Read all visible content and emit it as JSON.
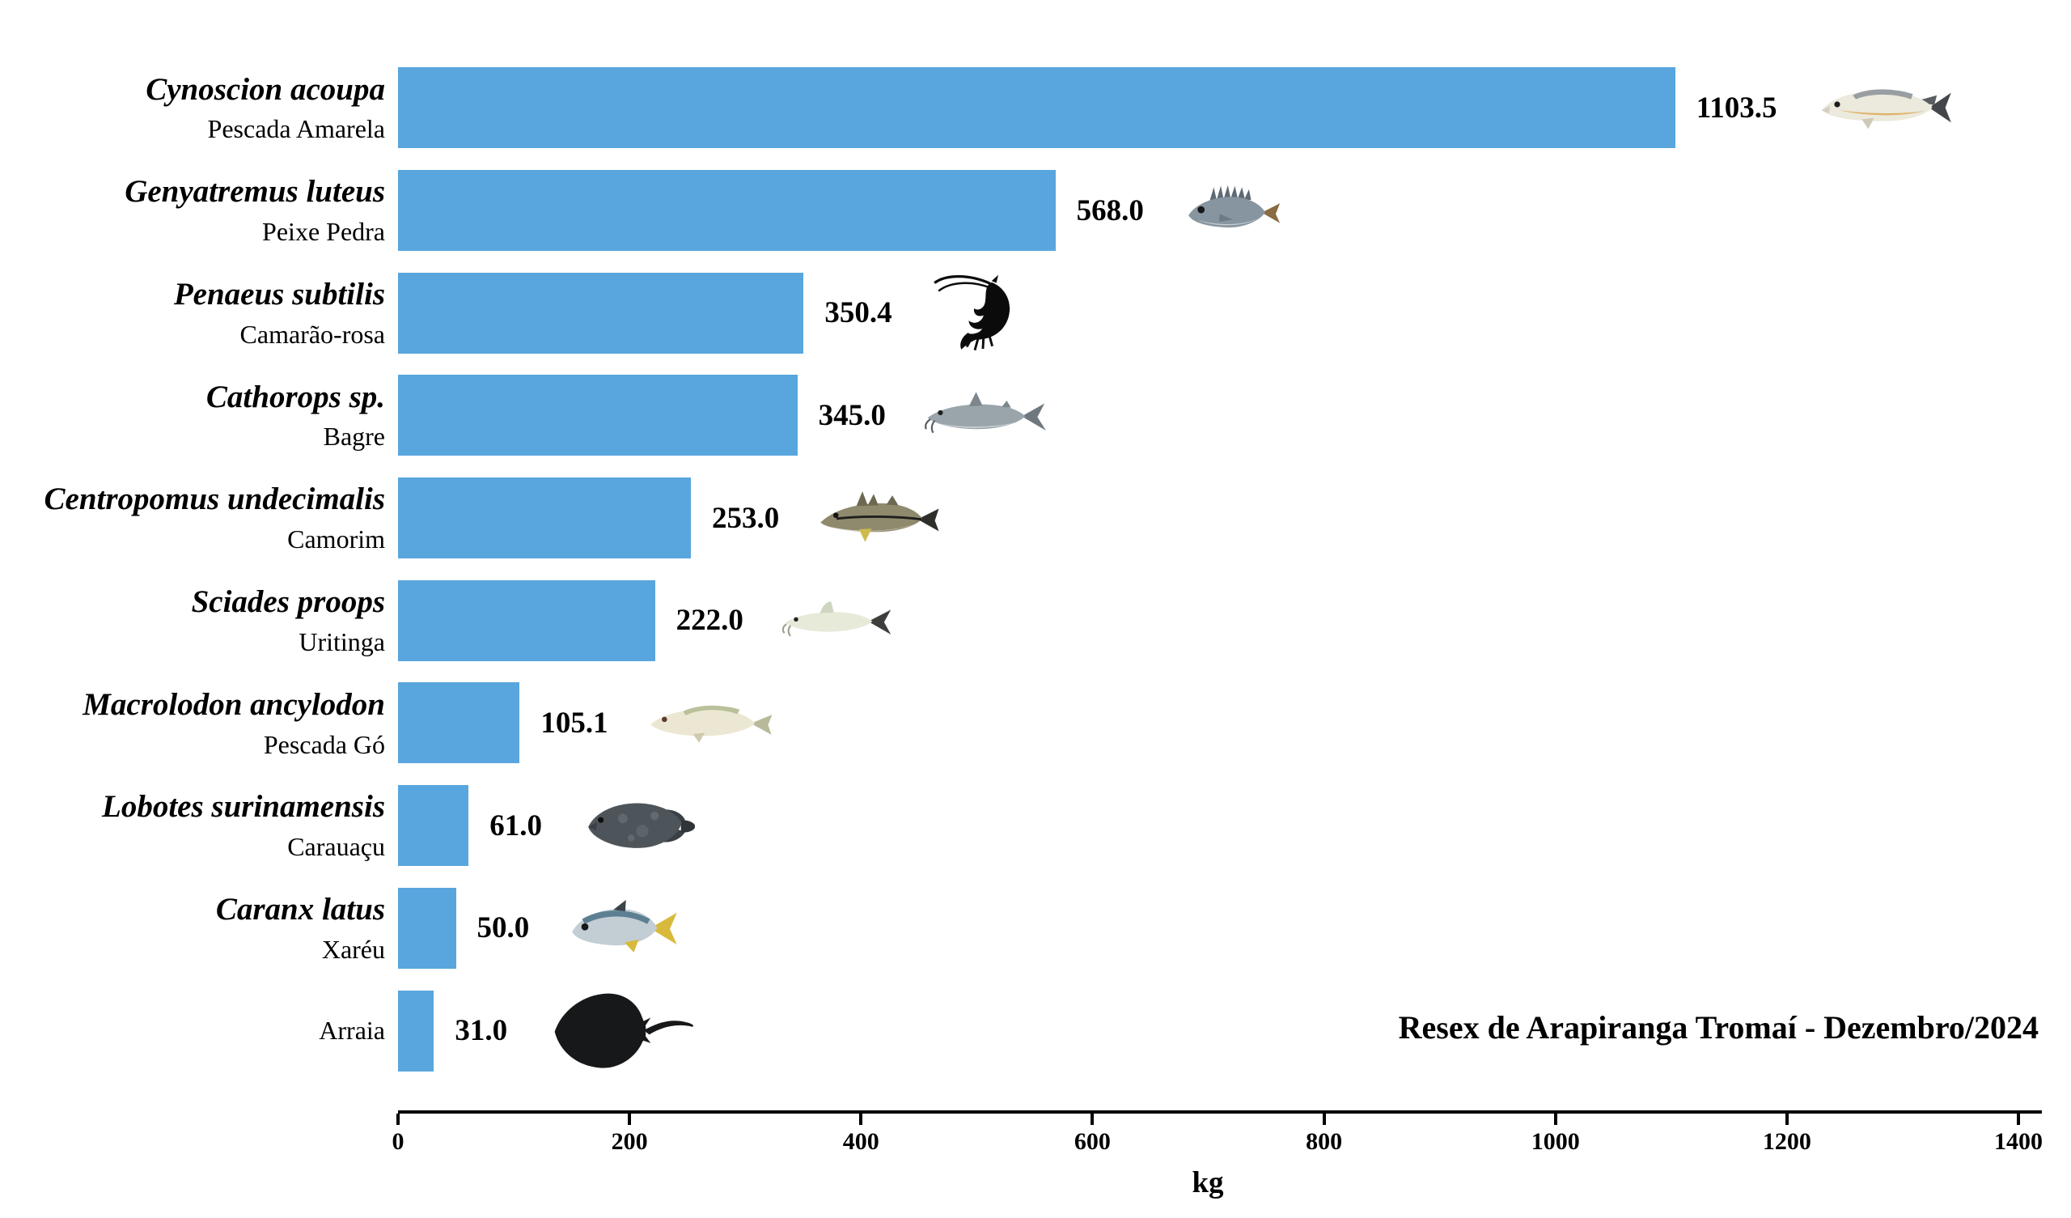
{
  "annotation": {
    "text": "Resex de Arapiranga Tromaí - Dezembro/2024"
  },
  "axis": {
    "unit_label": "kg"
  },
  "chart_data": {
    "type": "bar",
    "orientation": "horizontal",
    "xlabel": "kg",
    "xlim": [
      0,
      1400
    ],
    "x_ticks": [
      0,
      200,
      400,
      600,
      800,
      1000,
      1200,
      1400
    ],
    "grid": false,
    "legend": "none",
    "bar_color": "#58A6DD",
    "annotation": "Resex de Arapiranga Tromaí - Dezembro/2024",
    "categories": [
      "Cynoscion acoupa / Pescada Amarela",
      "Genyatremus luteus / Peixe Pedra",
      "Penaeus subtilis / Camarão-rosa",
      "Cathorops sp. / Bagre",
      "Centropomus undecimalis / Camorim",
      "Sciades proops / Uritinga",
      "Macrolodon ancylodon / Pescada Gó",
      "Lobotes surinamensis / Carauaçu",
      "Caranx latus / Xaréu",
      "Arraia"
    ],
    "values": [
      1103.5,
      568.0,
      350.4,
      345.0,
      253.0,
      222.0,
      105.1,
      61.0,
      50.0,
      31.0
    ],
    "species": [
      {
        "scientific": "Cynoscion acoupa",
        "common": "Pescada Amarela",
        "value": 1103.5,
        "value_label": "1103.5",
        "icon": "pescada-amarela-fish-icon"
      },
      {
        "scientific": "Genyatremus luteus",
        "common": "Peixe Pedra",
        "value": 568.0,
        "value_label": "568.0",
        "icon": "peixe-pedra-fish-icon"
      },
      {
        "scientific": "Penaeus subtilis",
        "common": "Camarão-rosa",
        "value": 350.4,
        "value_label": "350.4",
        "icon": "camarao-rosa-shrimp-icon"
      },
      {
        "scientific": "Cathorops sp.",
        "common": "Bagre",
        "value": 345.0,
        "value_label": "345.0",
        "icon": "bagre-fish-icon"
      },
      {
        "scientific": "Centropomus undecimalis",
        "common": "Camorim",
        "value": 253.0,
        "value_label": "253.0",
        "icon": "camorim-fish-icon"
      },
      {
        "scientific": "Sciades proops",
        "common": "Uritinga",
        "value": 222.0,
        "value_label": "222.0",
        "icon": "uritinga-fish-icon"
      },
      {
        "scientific": "Macrolodon ancylodon",
        "common": "Pescada Gó",
        "value": 105.1,
        "value_label": "105.1",
        "icon": "pescada-go-fish-icon"
      },
      {
        "scientific": "Lobotes surinamensis",
        "common": "Carauaçu",
        "value": 61.0,
        "value_label": "61.0",
        "icon": "carauacu-fish-icon"
      },
      {
        "scientific": "Caranx latus",
        "common": "Xaréu",
        "value": 50.0,
        "value_label": "50.0",
        "icon": "xareu-fish-icon"
      },
      {
        "scientific": "",
        "common": "Arraia",
        "value": 31.0,
        "value_label": "31.0",
        "icon": "arraia-ray-icon"
      }
    ]
  }
}
